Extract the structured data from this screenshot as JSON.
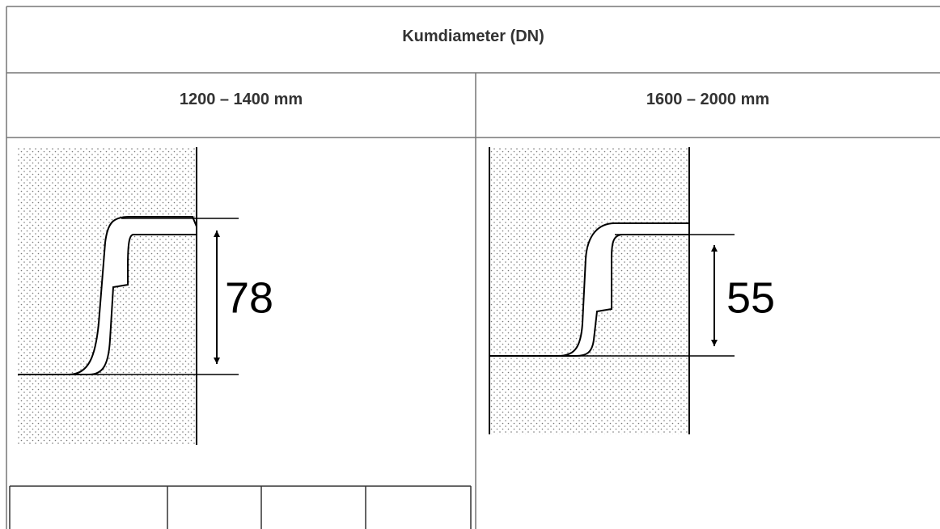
{
  "table": {
    "header": "Kumdiameter (DN)",
    "columns": [
      "1200 – 1400 mm",
      "1600 – 2000 mm"
    ],
    "drawings": [
      {
        "dimension": "78"
      },
      {
        "dimension": "55"
      }
    ]
  }
}
